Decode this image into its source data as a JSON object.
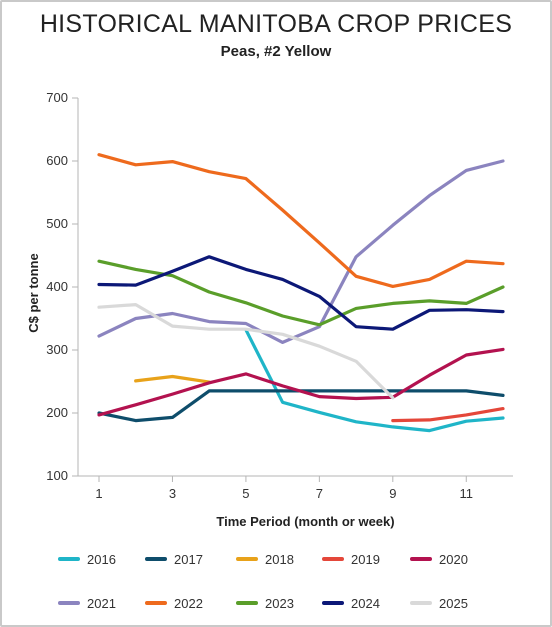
{
  "chart_data": {
    "type": "line",
    "title": "HISTORICAL MANITOBA CROP PRICES",
    "subtitle": "Peas, #2 Yellow",
    "xlabel": "Time Period (month or week)",
    "ylabel": "C$ per tonne",
    "xlim": [
      1,
      12
    ],
    "ylim": [
      100,
      700
    ],
    "x_ticks": [
      "1",
      "3",
      "5",
      "7",
      "9",
      "11"
    ],
    "y_ticks": [
      "100",
      "200",
      "300",
      "400",
      "500",
      "600",
      "700"
    ],
    "grid": false,
    "legend_position": "bottom",
    "series": [
      {
        "name": "2016",
        "color": "#1fb5c8",
        "x": [
          5,
          6,
          7,
          8,
          9,
          10,
          11,
          12
        ],
        "values": [
          332,
          217,
          201,
          186,
          178,
          172,
          187,
          192
        ]
      },
      {
        "name": "2017",
        "color": "#0e4d6b",
        "x": [
          1,
          2,
          3,
          4,
          5,
          6,
          7,
          8,
          9,
          10,
          11,
          12
        ],
        "values": [
          200,
          188,
          193,
          235,
          235,
          235,
          235,
          235,
          235,
          235,
          235,
          228
        ]
      },
      {
        "name": "2018",
        "color": "#e8a21a",
        "x": [
          2,
          3,
          4
        ],
        "values": [
          251,
          258,
          249
        ]
      },
      {
        "name": "2019",
        "color": "#e4473a",
        "x": [
          9,
          10,
          11,
          12
        ],
        "values": [
          188,
          189,
          197,
          207
        ]
      },
      {
        "name": "2020",
        "color": "#b3124f",
        "x": [
          1,
          2,
          3,
          4,
          5,
          6,
          7,
          8,
          9,
          10,
          11,
          12
        ],
        "values": [
          197,
          213,
          230,
          248,
          262,
          243,
          226,
          223,
          225,
          260,
          292,
          301
        ]
      },
      {
        "name": "2021",
        "color": "#8b84bf",
        "x": [
          1,
          2,
          3,
          4,
          5,
          6,
          7,
          8,
          9,
          10,
          11,
          12
        ],
        "values": [
          322,
          350,
          358,
          345,
          342,
          312,
          337,
          448,
          498,
          545,
          585,
          600
        ]
      },
      {
        "name": "2022",
        "color": "#ee6a1d",
        "x": [
          1,
          2,
          3,
          4,
          5,
          6,
          7,
          8,
          9,
          10,
          11,
          12
        ],
        "values": [
          610,
          594,
          599,
          583,
          572,
          522,
          470,
          417,
          401,
          412,
          441,
          437
        ]
      },
      {
        "name": "2023",
        "color": "#5a9e2a",
        "x": [
          1,
          2,
          3,
          4,
          5,
          6,
          7,
          8,
          9,
          10,
          11,
          12
        ],
        "values": [
          441,
          428,
          418,
          392,
          375,
          354,
          340,
          366,
          374,
          378,
          374,
          400
        ]
      },
      {
        "name": "2024",
        "color": "#0c1877",
        "x": [
          1,
          2,
          3,
          4,
          5,
          6,
          7,
          8,
          9,
          10,
          11,
          12
        ],
        "values": [
          404,
          403,
          425,
          448,
          428,
          412,
          385,
          337,
          333,
          363,
          364,
          361
        ]
      },
      {
        "name": "2025",
        "color": "#d9d9d9",
        "x": [
          1,
          2,
          3,
          4,
          5,
          6,
          7,
          8,
          9
        ],
        "values": [
          368,
          372,
          338,
          333,
          333,
          325,
          306,
          282,
          224
        ]
      }
    ]
  }
}
